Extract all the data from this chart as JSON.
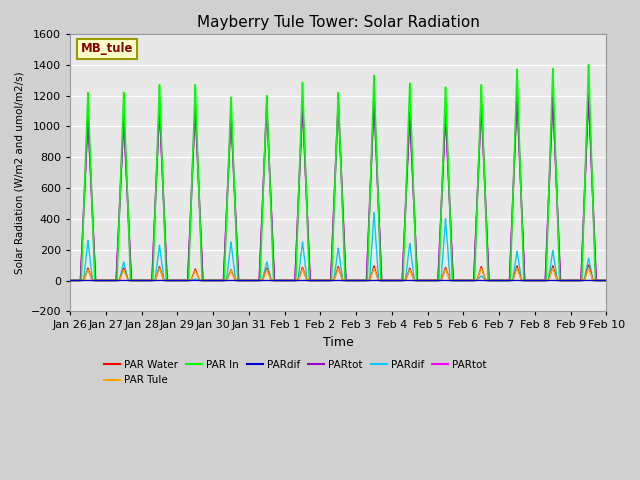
{
  "title": "Mayberry Tule Tower: Solar Radiation",
  "ylabel": "Solar Radiation (W/m2 and umol/m2/s)",
  "xlabel": "Time",
  "ylim": [
    -200,
    1600
  ],
  "yticks": [
    -200,
    0,
    200,
    400,
    600,
    800,
    1000,
    1200,
    1400,
    1600
  ],
  "watermark_text": "MB_tule",
  "xtick_labels": [
    "Jan 26",
    "Jan 27",
    "Jan 28",
    "Jan 29",
    "Jan 30",
    "Jan 31",
    "Feb 1",
    "Feb 2",
    "Feb 3",
    "Feb 4",
    "Feb 5",
    "Feb 6",
    "Feb 7",
    "Feb 8",
    "Feb 9",
    "Feb 10"
  ],
  "num_days": 15,
  "series": [
    {
      "label": "PAR Water",
      "color": "#ff0000"
    },
    {
      "label": "PAR Tule",
      "color": "#ffa500"
    },
    {
      "label": "PAR In",
      "color": "#00ff00"
    },
    {
      "label": "PARdif",
      "color": "#0000cd"
    },
    {
      "label": "PARtot",
      "color": "#9900cc"
    },
    {
      "label": "PARdif",
      "color": "#00ccff"
    },
    {
      "label": "PARtot",
      "color": "#ff00ff"
    }
  ],
  "par_mg_peaks": [
    1060,
    1060,
    1130,
    1130,
    1080,
    1140,
    1150,
    1160,
    1175,
    1090,
    1090,
    1155,
    1200,
    1200,
    1210
  ],
  "par_in_peaks": [
    1220,
    1220,
    1270,
    1270,
    1190,
    1200,
    1285,
    1220,
    1330,
    1280,
    1255,
    1270,
    1370,
    1375,
    1400
  ],
  "par_purple_peaks": [
    1060,
    1060,
    1130,
    1130,
    1080,
    1140,
    1150,
    1160,
    1175,
    1090,
    1090,
    1155,
    1200,
    1200,
    1210
  ],
  "par_cyan_peaks": [
    260,
    120,
    230,
    10,
    250,
    120,
    250,
    210,
    440,
    240,
    400,
    30,
    190,
    195,
    145
  ],
  "par_water_peaks": [
    80,
    80,
    90,
    75,
    70,
    80,
    85,
    90,
    95,
    80,
    85,
    90,
    95,
    95,
    100
  ],
  "par_tule_peaks": [
    70,
    70,
    80,
    65,
    65,
    70,
    75,
    80,
    80,
    70,
    75,
    80,
    80,
    80,
    85
  ],
  "day_start": 0.29,
  "day_end": 0.71
}
